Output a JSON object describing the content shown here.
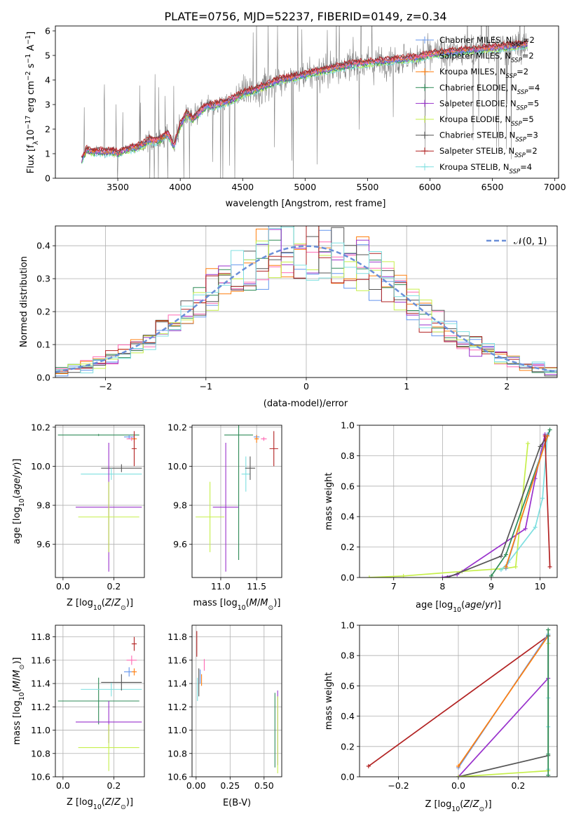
{
  "figure_title": "PLATE=0756, MJD=52237, FIBERID=0149, z=0.34",
  "colors": {
    "Chabrier MILES": "#6495ed",
    "Salpeter MILES": "#ff69b4",
    "Kroupa MILES": "#ff7f0e",
    "Chabrier ELODIE": "#2e8b57",
    "Salpeter ELODIE": "#9932cc",
    "Kroupa ELODIE": "#c6ef4a",
    "Chabrier STELIB": "#555555",
    "Salpeter STELIB": "#b22222",
    "Kroupa STELIB": "#7fdfe0",
    "normal": "#6a8fd8",
    "data": "#808080"
  },
  "chart_data": [
    {
      "id": "spectrum",
      "type": "line",
      "title": "PLATE=0756, MJD=52237, FIBERID=0149, z=0.34",
      "xlabel": "wavelength [Angstrom, rest frame]",
      "ylabel": "Flux [f_λ10^-17 erg cm^-2 s^-1 A^-1]",
      "xlim": [
        3000,
        7030
      ],
      "ylim": [
        0,
        6.2
      ],
      "xticks": [
        3500,
        4000,
        4500,
        5000,
        5500,
        6000,
        6500,
        7000
      ],
      "yticks": [
        0,
        1,
        2,
        3,
        4,
        5,
        6
      ],
      "legend_position": "top-right",
      "grid": false,
      "legend": [
        {
          "label": "Chabrier MILES, N",
          "sub": "SSP",
          "suffix": "=2"
        },
        {
          "label": "Salpeter MILES, N",
          "sub": "SSP",
          "suffix": "=2"
        },
        {
          "label": "Kroupa MILES, N",
          "sub": "SSP",
          "suffix": "=2"
        },
        {
          "label": "Chabrier ELODIE, N",
          "sub": "SSP",
          "suffix": "=4"
        },
        {
          "label": "Salpeter ELODIE, N",
          "sub": "SSP",
          "suffix": "=5"
        },
        {
          "label": "Kroupa ELODIE, N",
          "sub": "SSP",
          "suffix": "=5"
        },
        {
          "label": "Chabrier STELIB, N",
          "sub": "SSP",
          "suffix": "=3"
        },
        {
          "label": "Salpeter STELIB, N",
          "sub": "SSP",
          "suffix": "=2"
        },
        {
          "label": "Kroupa STELIB, N",
          "sub": "SSP",
          "suffix": "=4"
        }
      ],
      "continuum": {
        "x": [
          3210,
          3250,
          3300,
          3350,
          3400,
          3450,
          3500,
          3550,
          3600,
          3650,
          3700,
          3750,
          3800,
          3850,
          3900,
          3950,
          4000,
          4050,
          4100,
          4200,
          4300,
          4400,
          4500,
          4600,
          4700,
          4800,
          4900,
          5000,
          5100,
          5200,
          5300,
          5400,
          5500,
          5600,
          5700,
          5800,
          5900,
          6000,
          6100,
          6200,
          6300,
          6400,
          6500,
          6600,
          6700,
          6780
        ],
        "y": [
          0.75,
          1.15,
          1.05,
          1.1,
          1.05,
          1.1,
          1.0,
          1.15,
          1.2,
          1.25,
          1.35,
          1.55,
          1.5,
          1.6,
          1.8,
          1.3,
          2.15,
          2.6,
          2.4,
          2.9,
          3.0,
          3.15,
          3.45,
          3.6,
          3.8,
          4.0,
          4.1,
          4.2,
          4.35,
          4.45,
          4.55,
          4.65,
          4.7,
          4.75,
          4.8,
          4.85,
          4.9,
          5.05,
          5.1,
          5.15,
          5.2,
          5.25,
          5.3,
          5.35,
          5.4,
          5.45
        ]
      }
    },
    {
      "id": "residuals",
      "type": "histogram",
      "xlabel": "(data-model)/error",
      "ylabel": "Normed distribution",
      "xlim": [
        -2.5,
        2.5
      ],
      "ylim": [
        0,
        0.46
      ],
      "xticks": [
        -2,
        -1,
        0,
        1,
        2
      ],
      "xticklabels": [
        "−2",
        "−1",
        "0",
        "1",
        "2"
      ],
      "yticks": [
        0.0,
        0.1,
        0.2,
        0.3,
        0.4
      ],
      "yticklabels": [
        "0.0",
        "0.1",
        "0.2",
        "0.3",
        "0.4"
      ],
      "grid": true,
      "legend_position": "top-right",
      "legend_label": "𝒩(0, 1)",
      "bins": [
        -2.5,
        2.5,
        40
      ]
    },
    {
      "id": "age-vs-Z",
      "type": "errorbar",
      "xlabel": "Z [log10(Z/Z☉)]",
      "ylabel": "age [log10(age/yr)]",
      "xlim": [
        -0.03,
        0.32
      ],
      "ylim": [
        9.43,
        10.21
      ],
      "xticks": [
        0.0,
        0.2
      ],
      "xticklabels": [
        "0.0",
        "0.2"
      ],
      "yticks": [
        9.6,
        9.8,
        10.0,
        10.2
      ],
      "yticklabels": [
        "9.6",
        "9.8",
        "10.0",
        "10.2"
      ],
      "grid": true,
      "points": [
        {
          "series": "Chabrier ELODIE",
          "x": 0.14,
          "xerr": 0.16,
          "y": 10.16,
          "yerr": 0.005
        },
        {
          "series": "Chabrier STELIB",
          "x": 0.23,
          "xerr": 0.08,
          "y": 9.99,
          "yerr": 0.02
        },
        {
          "series": "Kroupa STELIB",
          "x": 0.19,
          "xerr": 0.12,
          "y": 9.96,
          "yerr": 0.03
        },
        {
          "series": "Salpeter ELODIE",
          "x": 0.18,
          "xerr": 0.13,
          "y": 9.79,
          "yerr": 0.33
        },
        {
          "series": "Kroupa ELODIE",
          "x": 0.18,
          "xerr": 0.12,
          "y": 9.74,
          "yerr": 0.18
        },
        {
          "series": "Chabrier MILES",
          "x": 0.26,
          "xerr": 0.02,
          "y": 10.15,
          "yerr": 0.01
        },
        {
          "series": "Salpeter MILES",
          "x": 0.27,
          "xerr": 0.02,
          "y": 10.14,
          "yerr": 0.01
        },
        {
          "series": "Kroupa MILES",
          "x": 0.28,
          "xerr": 0.01,
          "y": 10.14,
          "yerr": 0.02
        },
        {
          "series": "Salpeter STELIB",
          "x": 0.28,
          "xerr": 0.01,
          "y": 10.09,
          "yerr": 0.09
        }
      ]
    },
    {
      "id": "age-vs-mass",
      "type": "errorbar",
      "xlabel": "mass [log10(M/M☉)]",
      "xlim": [
        10.6,
        11.85
      ],
      "ylim": [
        9.43,
        10.21
      ],
      "xticks": [
        11.0,
        11.5
      ],
      "xticklabels": [
        "11.0",
        "11.5"
      ],
      "yticks": [
        9.6,
        9.8,
        10.0,
        10.2
      ],
      "yticklabels": [
        "9.6",
        "9.8",
        "10.0",
        "10.2"
      ],
      "grid": true,
      "points": [
        {
          "series": "Chabrier ELODIE",
          "x": 11.25,
          "xerr": 0.2,
          "y": 10.16,
          "yerr": 0.64
        },
        {
          "series": "Kroupa ELODIE",
          "x": 10.85,
          "xerr": 0.2,
          "y": 9.74,
          "yerr": 0.18
        },
        {
          "series": "Salpeter ELODIE",
          "x": 11.07,
          "xerr": 0.18,
          "y": 9.79,
          "yerr": 0.33
        },
        {
          "series": "Kroupa STELIB",
          "x": 11.35,
          "xerr": 0.06,
          "y": 9.96,
          "yerr": 0.09
        },
        {
          "series": "Chabrier STELIB",
          "x": 11.41,
          "xerr": 0.07,
          "y": 9.99,
          "yerr": 0.06
        },
        {
          "series": "Chabrier MILES",
          "x": 11.5,
          "xerr": 0.04,
          "y": 10.15,
          "yerr": 0.01
        },
        {
          "series": "Salpeter MILES",
          "x": 11.6,
          "xerr": 0.04,
          "y": 10.14,
          "yerr": 0.01
        },
        {
          "series": "Kroupa MILES",
          "x": 11.5,
          "xerr": 0.03,
          "y": 10.14,
          "yerr": 0.02
        },
        {
          "series": "Salpeter STELIB",
          "x": 11.74,
          "xerr": 0.06,
          "y": 10.09,
          "yerr": 0.09
        }
      ]
    },
    {
      "id": "cumulative-age",
      "type": "line",
      "xlabel": "age [log10(age/yr)]",
      "ylabel": "mass weight",
      "xlim": [
        6.3,
        10.35
      ],
      "ylim": [
        0,
        1.0
      ],
      "xticks": [
        7,
        8,
        9,
        10
      ],
      "xticklabels": [
        "7",
        "8",
        "9",
        "10"
      ],
      "yticks": [
        0.0,
        0.2,
        0.4,
        0.6,
        0.8,
        1.0
      ],
      "yticklabels": [
        "0.0",
        "0.2",
        "0.4",
        "0.6",
        "0.8",
        "1.0"
      ],
      "grid": true,
      "series": [
        {
          "name": "Kroupa ELODIE",
          "x": [
            6.5,
            7.2,
            8.4,
            9.3,
            9.5,
            9.75
          ],
          "y": [
            0.0,
            0.01,
            0.04,
            0.06,
            0.07,
            0.88
          ]
        },
        {
          "name": "Salpeter ELODIE",
          "x": [
            8.0,
            8.3,
            9.7,
            9.9,
            10.1
          ],
          "y": [
            0.0,
            0.02,
            0.32,
            0.65,
            0.94
          ]
        },
        {
          "name": "Chabrier STELIB",
          "x": [
            8.1,
            9.2,
            10.0,
            10.15
          ],
          "y": [
            0.0,
            0.14,
            0.86,
            0.93
          ]
        },
        {
          "name": "Kroupa STELIB",
          "x": [
            9.2,
            9.35,
            9.9,
            10.05,
            10.15
          ],
          "y": [
            0.05,
            0.1,
            0.33,
            0.52,
            0.94
          ]
        },
        {
          "name": "Chabrier ELODIE",
          "x": [
            9.0,
            9.3,
            10.2
          ],
          "y": [
            0.01,
            0.15,
            0.97
          ]
        },
        {
          "name": "Chabrier MILES",
          "x": [
            9.3,
            10.15
          ],
          "y": [
            0.06,
            0.94
          ]
        },
        {
          "name": "Kroupa MILES",
          "x": [
            9.3,
            10.15
          ],
          "y": [
            0.07,
            0.93
          ]
        },
        {
          "name": "Salpeter STELIB",
          "x": [
            10.1,
            10.2
          ],
          "y": [
            0.93,
            0.07
          ]
        }
      ]
    },
    {
      "id": "mass-vs-Z",
      "type": "errorbar",
      "xlabel": "Z [log10(Z/Z☉)]",
      "ylabel": "mass [log10(M/M☉)]",
      "xlim": [
        -0.03,
        0.32
      ],
      "ylim": [
        10.6,
        11.9
      ],
      "xticks": [
        0.0,
        0.2
      ],
      "xticklabels": [
        "0.0",
        "0.2"
      ],
      "yticks": [
        10.6,
        10.8,
        11.0,
        11.2,
        11.4,
        11.6,
        11.8
      ],
      "yticklabels": [
        "10.6",
        "10.8",
        "11.0",
        "11.2",
        "11.4",
        "11.6",
        "11.8"
      ],
      "grid": true,
      "points": [
        {
          "series": "Chabrier ELODIE",
          "x": 0.14,
          "xerr": 0.16,
          "y": 11.25,
          "yerr": 0.2
        },
        {
          "series": "Kroupa STELIB",
          "x": 0.19,
          "xerr": 0.12,
          "y": 11.35,
          "yerr": 0.06
        },
        {
          "series": "Chabrier STELIB",
          "x": 0.23,
          "xerr": 0.08,
          "y": 11.41,
          "yerr": 0.07
        },
        {
          "series": "Salpeter ELODIE",
          "x": 0.18,
          "xerr": 0.13,
          "y": 11.07,
          "yerr": 0.18
        },
        {
          "series": "Kroupa ELODIE",
          "x": 0.18,
          "xerr": 0.12,
          "y": 10.85,
          "yerr": 0.2
        },
        {
          "series": "Chabrier MILES",
          "x": 0.26,
          "xerr": 0.02,
          "y": 11.5,
          "yerr": 0.04
        },
        {
          "series": "Salpeter MILES",
          "x": 0.27,
          "xerr": 0.02,
          "y": 11.6,
          "yerr": 0.04
        },
        {
          "series": "Kroupa MILES",
          "x": 0.28,
          "xerr": 0.01,
          "y": 11.5,
          "yerr": 0.03
        },
        {
          "series": "Salpeter STELIB",
          "x": 0.28,
          "xerr": 0.01,
          "y": 11.74,
          "yerr": 0.06
        }
      ]
    },
    {
      "id": "mass-vs-ebv",
      "type": "errorbar",
      "xlabel": "E(B-V)",
      "xlim": [
        -0.03,
        0.63
      ],
      "ylim": [
        10.6,
        11.9
      ],
      "xticks": [
        0.0,
        0.25,
        0.5
      ],
      "xticklabels": [
        "0.00",
        "0.25",
        "0.50"
      ],
      "yticks": [
        10.6,
        10.8,
        11.0,
        11.2,
        11.4,
        11.6,
        11.8
      ],
      "yticklabels": [
        "10.6",
        "10.8",
        "11.0",
        "11.2",
        "11.4",
        "11.6",
        "11.8"
      ],
      "grid": true,
      "points": [
        {
          "series": "Salpeter STELIB",
          "x": 0.005,
          "xerr": 0,
          "y": 11.74,
          "yerr": 0.11
        },
        {
          "series": "Chabrier STELIB",
          "x": 0.02,
          "xerr": 0,
          "y": 11.41,
          "yerr": 0.12
        },
        {
          "series": "Kroupa STELIB",
          "x": 0.01,
          "xerr": 0,
          "y": 11.35,
          "yerr": 0.1
        },
        {
          "series": "Chabrier MILES",
          "x": 0.03,
          "xerr": 0,
          "y": 11.46,
          "yerr": 0.06
        },
        {
          "series": "Kroupa MILES",
          "x": 0.04,
          "xerr": 0,
          "y": 11.43,
          "yerr": 0.05
        },
        {
          "series": "Salpeter MILES",
          "x": 0.06,
          "xerr": 0,
          "y": 11.56,
          "yerr": 0.05
        },
        {
          "series": "Chabrier ELODIE",
          "x": 0.58,
          "xerr": 0,
          "y": 11.0,
          "yerr": 0.32
        },
        {
          "series": "Salpeter ELODIE",
          "x": 0.6,
          "xerr": 0,
          "y": 11.02,
          "yerr": 0.32
        },
        {
          "series": "Kroupa ELODIE",
          "x": 0.6,
          "xerr": 0,
          "y": 10.96,
          "yerr": 0.33
        }
      ]
    },
    {
      "id": "cumulative-Z",
      "type": "line",
      "xlabel": "Z [log10(Z/Z☉)]",
      "ylabel": "mass weight",
      "xlim": [
        -0.33,
        0.33
      ],
      "ylim": [
        0,
        1.0
      ],
      "xticks": [
        -0.2,
        0.0,
        0.2
      ],
      "xticklabels": [
        "−0.2",
        "0.0",
        "0.2"
      ],
      "yticks": [
        0.0,
        0.2,
        0.4,
        0.6,
        0.8,
        1.0
      ],
      "yticklabels": [
        "0.0",
        "0.2",
        "0.4",
        "0.6",
        "0.8",
        "1.0"
      ],
      "grid": true,
      "series": [
        {
          "name": "Salpeter STELIB",
          "x": [
            -0.3,
            0.3
          ],
          "y": [
            0.07,
            0.93
          ]
        },
        {
          "name": "Chabrier MILES",
          "x": [
            0.0,
            0.3
          ],
          "y": [
            0.06,
            0.94
          ]
        },
        {
          "name": "Kroupa MILES",
          "x": [
            0.0,
            0.3
          ],
          "y": [
            0.07,
            0.93
          ]
        },
        {
          "name": "Salpeter ELODIE",
          "x": [
            0.0,
            0.3,
            0.3
          ],
          "y": [
            0.0,
            0.65,
            0.94
          ]
        },
        {
          "name": "Chabrier STELIB",
          "x": [
            0.0,
            0.3,
            0.3
          ],
          "y": [
            0.0,
            0.14,
            0.93
          ]
        },
        {
          "name": "Kroupa ELODIE",
          "x": [
            0.0,
            0.3,
            0.3
          ],
          "y": [
            0.0,
            0.04,
            0.88
          ]
        },
        {
          "name": "Kroupa STELIB",
          "x": [
            0.3,
            0.3,
            0.3,
            0.3
          ],
          "y": [
            0.05,
            0.33,
            0.52,
            0.94
          ]
        },
        {
          "name": "Chabrier ELODIE",
          "x": [
            0.3,
            0.3,
            0.3
          ],
          "y": [
            0.01,
            0.15,
            0.97
          ]
        }
      ]
    }
  ]
}
